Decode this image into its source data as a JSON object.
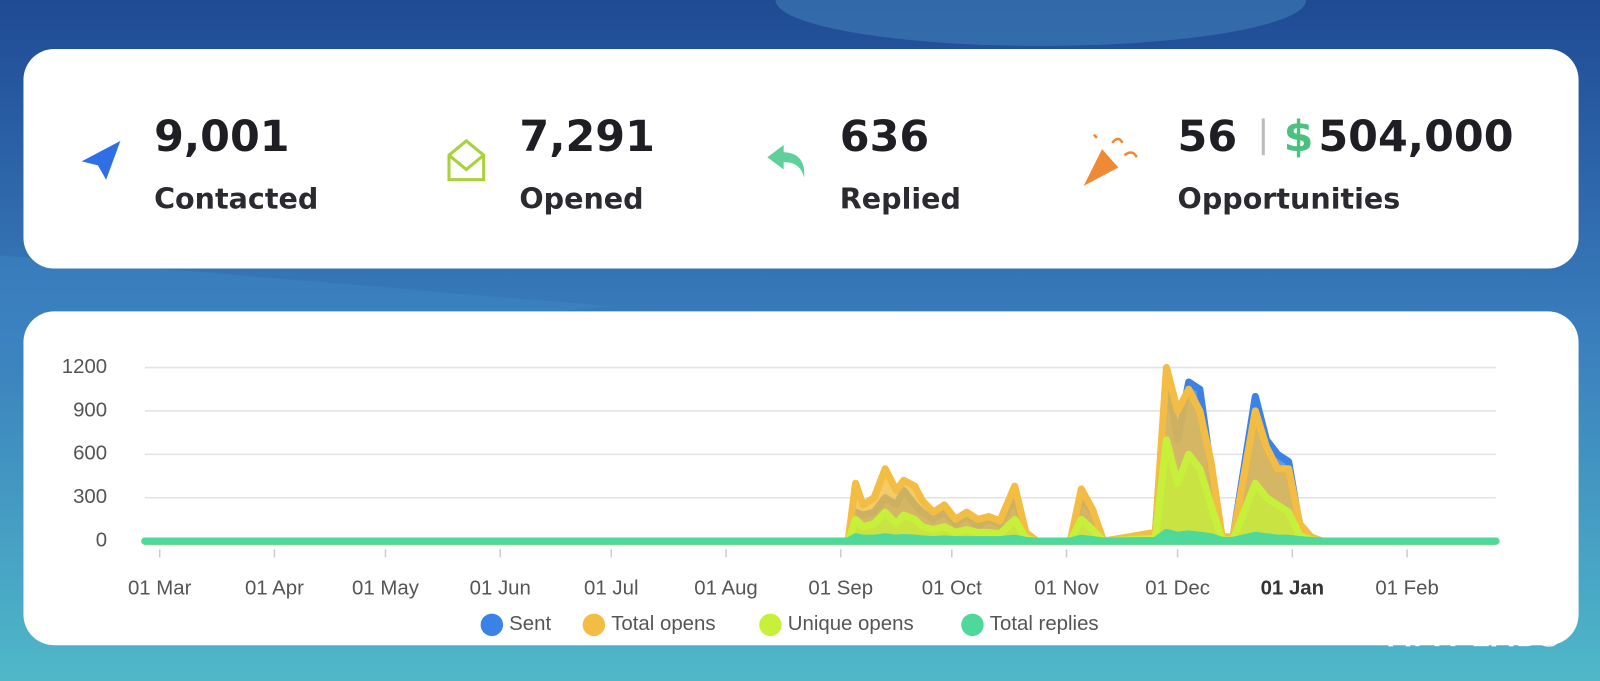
{
  "stats": [
    {
      "value": "9,001",
      "label": "Contacted"
    },
    {
      "value": "7,291",
      "label": "Opened"
    },
    {
      "value": "636",
      "label": "Replied"
    },
    {
      "value": "56",
      "currency": "$",
      "amount": "504,000",
      "label": "Opportunities"
    }
  ],
  "watermark": "APX LABS",
  "chart_data": {
    "type": "area",
    "x": [
      -4,
      186,
      188,
      190,
      193,
      196,
      199,
      201,
      204,
      206,
      209,
      212,
      215,
      218,
      221,
      224,
      227,
      231,
      234,
      237,
      246,
      249,
      252,
      255,
      269,
      272,
      275,
      278,
      281,
      284,
      287,
      290,
      296,
      299,
      302,
      305,
      308,
      311,
      314,
      361
    ],
    "xlim": [
      -4,
      361
    ],
    "xticks": [
      {
        "value": 0,
        "label": "01 Mar"
      },
      {
        "value": 31,
        "label": "01 Apr"
      },
      {
        "value": 61,
        "label": "01 May"
      },
      {
        "value": 92,
        "label": "01 Jun"
      },
      {
        "value": 122,
        "label": "01 Jul"
      },
      {
        "value": 153,
        "label": "01 Aug"
      },
      {
        "value": 184,
        "label": "01 Sep"
      },
      {
        "value": 214,
        "label": "01 Oct"
      },
      {
        "value": 245,
        "label": "01 Nov"
      },
      {
        "value": 275,
        "label": "01 Dec"
      },
      {
        "value": 306,
        "label": "01 Jan",
        "bold": true
      },
      {
        "value": 337,
        "label": "01 Feb"
      }
    ],
    "ylim": [
      0,
      1200
    ],
    "yticks": [
      0,
      300,
      600,
      900,
      1200
    ],
    "grid": true,
    "series": [
      {
        "name": "Sent",
        "color": "#3b82e6",
        "values": [
          0,
          0,
          200,
          180,
          200,
          300,
          250,
          350,
          250,
          200,
          150,
          200,
          120,
          180,
          100,
          150,
          120,
          300,
          50,
          0,
          0,
          300,
          200,
          0,
          50,
          1150,
          700,
          1100,
          1050,
          500,
          20,
          30,
          1000,
          700,
          600,
          550,
          100,
          20,
          0,
          0
        ]
      },
      {
        "name": "Total opens",
        "color": "#f2bd42",
        "values": [
          0,
          0,
          400,
          250,
          300,
          500,
          350,
          420,
          380,
          280,
          200,
          250,
          150,
          200,
          150,
          170,
          140,
          380,
          60,
          0,
          0,
          360,
          220,
          0,
          60,
          1200,
          900,
          1050,
          900,
          550,
          30,
          30,
          900,
          650,
          500,
          500,
          120,
          30,
          0,
          0
        ]
      },
      {
        "name": "Unique opens",
        "color": "#c6f03a",
        "values": [
          0,
          0,
          150,
          100,
          120,
          200,
          120,
          180,
          150,
          100,
          80,
          100,
          60,
          80,
          60,
          60,
          50,
          150,
          20,
          0,
          0,
          150,
          80,
          0,
          20,
          700,
          400,
          600,
          500,
          250,
          10,
          10,
          400,
          300,
          250,
          200,
          40,
          10,
          0,
          0
        ]
      },
      {
        "name": "Total replies",
        "color": "#4ed89a",
        "values": [
          0,
          0,
          30,
          20,
          20,
          30,
          20,
          25,
          20,
          15,
          10,
          15,
          10,
          10,
          10,
          10,
          10,
          20,
          5,
          0,
          0,
          20,
          10,
          0,
          5,
          60,
          40,
          50,
          40,
          30,
          5,
          5,
          40,
          30,
          20,
          20,
          10,
          5,
          0,
          0
        ]
      }
    ]
  }
}
